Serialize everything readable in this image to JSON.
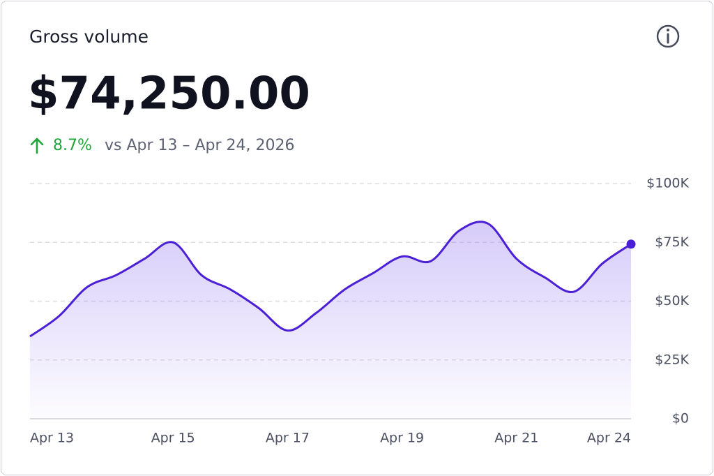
{
  "header": {
    "title": "Gross volume",
    "amount": "$74,250.00",
    "change": "8.7%",
    "comparison": "vs Apr 13 – Apr 24, 2026"
  },
  "chart_data": {
    "type": "area",
    "x": [
      "Apr 13",
      null,
      null,
      null,
      null,
      "Apr 15",
      null,
      null,
      null,
      "Apr 17",
      null,
      null,
      null,
      "Apr 19",
      null,
      null,
      null,
      "Apr 21",
      null,
      null,
      null,
      "Apr 24"
    ],
    "values": [
      35000,
      43500,
      56000,
      61000,
      68000,
      75000,
      61000,
      55000,
      47000,
      37500,
      45000,
      55000,
      62000,
      69000,
      67000,
      80000,
      83000,
      68000,
      60000,
      54000,
      66000,
      74250
    ],
    "color": "#4a1fd6",
    "ylim": [
      0,
      100000
    ],
    "yticks": [
      {
        "value": 0,
        "label": "$0"
      },
      {
        "value": 25000,
        "label": "$25K"
      },
      {
        "value": 50000,
        "label": "$50K"
      },
      {
        "value": 75000,
        "label": "$75K"
      },
      {
        "value": 100000,
        "label": "$100K"
      }
    ],
    "grid": true
  }
}
